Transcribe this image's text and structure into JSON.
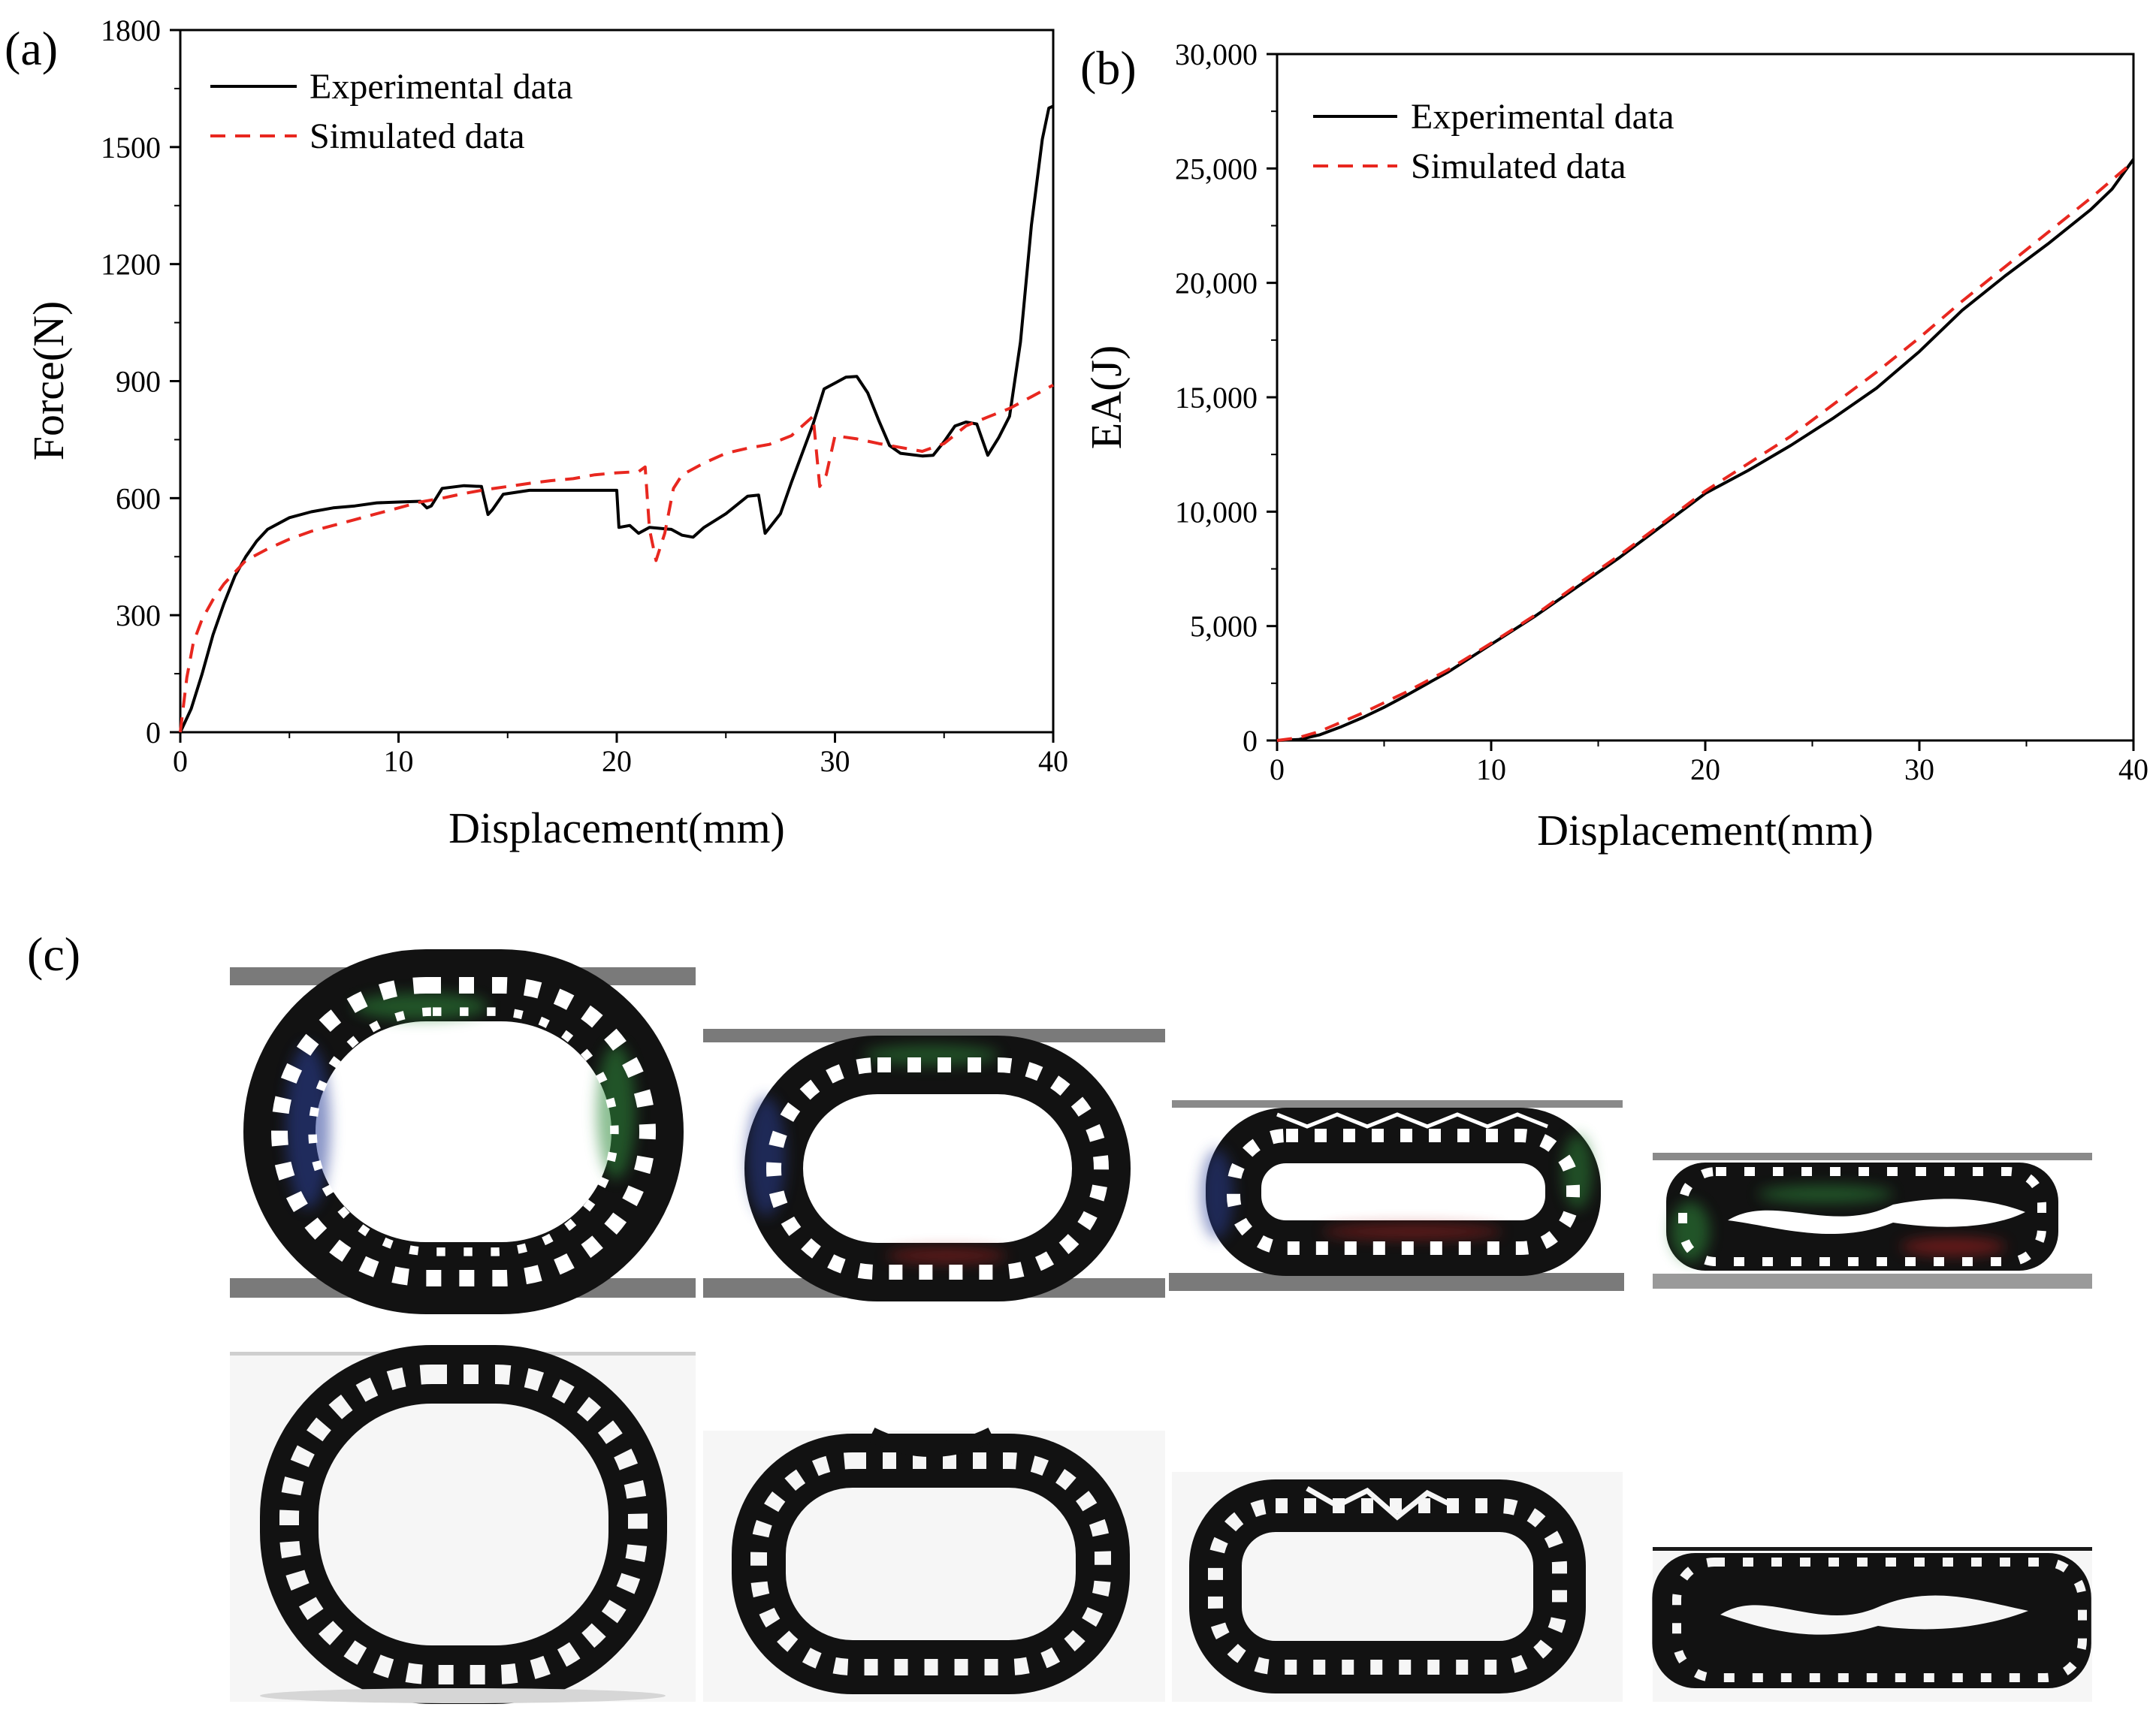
{
  "panel_labels": {
    "a": "(a)",
    "b": "(b)",
    "c": "(c)"
  },
  "colors": {
    "experimental": "#000000",
    "simulated": "#e8271f",
    "platen": "#7a7a7a",
    "specimen": "#121212",
    "stain_green": "#2f8a3a",
    "stain_blue": "#2a3f9a",
    "stain_red": "#b02020"
  },
  "chart_data": [
    {
      "id": "a",
      "type": "line",
      "xlabel": "Displacement(mm)",
      "ylabel": "Force(N)",
      "xlim": [
        0,
        40
      ],
      "ylim": [
        0,
        1800
      ],
      "xticks": [
        0,
        10,
        20,
        30,
        40
      ],
      "yticks": [
        0,
        300,
        600,
        900,
        1200,
        1500,
        1800
      ],
      "ytick_labels": [
        "0",
        "300",
        "600",
        "900",
        "1200",
        "1500",
        "1800"
      ],
      "legend_position": "top-left",
      "series": [
        {
          "name": "Experimental data",
          "style": "solid",
          "points": [
            [
              0,
              0
            ],
            [
              0.5,
              60
            ],
            [
              1,
              150
            ],
            [
              1.5,
              250
            ],
            [
              2,
              330
            ],
            [
              2.5,
              400
            ],
            [
              3,
              450
            ],
            [
              3.5,
              490
            ],
            [
              4,
              520
            ],
            [
              5,
              550
            ],
            [
              6,
              565
            ],
            [
              7,
              575
            ],
            [
              8,
              580
            ],
            [
              9,
              588
            ],
            [
              10,
              590
            ],
            [
              11,
              592
            ],
            [
              11.3,
              575
            ],
            [
              11.5,
              580
            ],
            [
              12,
              625
            ],
            [
              13,
              632
            ],
            [
              13.8,
              630
            ],
            [
              14.1,
              558
            ],
            [
              14.3,
              570
            ],
            [
              14.8,
              610
            ],
            [
              16,
              620
            ],
            [
              18,
              620
            ],
            [
              20,
              620
            ],
            [
              20.1,
              525
            ],
            [
              20.6,
              530
            ],
            [
              21,
              510
            ],
            [
              21.5,
              525
            ],
            [
              22.5,
              520
            ],
            [
              23,
              505
            ],
            [
              23.5,
              500
            ],
            [
              24,
              525
            ],
            [
              25,
              560
            ],
            [
              26,
              605
            ],
            [
              26.5,
              608
            ],
            [
              26.8,
              510
            ],
            [
              27.5,
              560
            ],
            [
              28,
              640
            ],
            [
              29,
              790
            ],
            [
              29.5,
              880
            ],
            [
              30,
              895
            ],
            [
              30.5,
              910
            ],
            [
              31,
              912
            ],
            [
              31.5,
              870
            ],
            [
              32,
              800
            ],
            [
              32.5,
              735
            ],
            [
              33,
              715
            ],
            [
              34,
              708
            ],
            [
              34.5,
              710
            ],
            [
              35,
              745
            ],
            [
              35.5,
              785
            ],
            [
              36,
              795
            ],
            [
              36.5,
              790
            ],
            [
              37,
              710
            ],
            [
              37.5,
              755
            ],
            [
              38,
              810
            ],
            [
              38.5,
              1000
            ],
            [
              39,
              1300
            ],
            [
              39.5,
              1520
            ],
            [
              39.8,
              1600
            ],
            [
              40,
              1605
            ]
          ]
        },
        {
          "name": "Simulated data",
          "style": "dashed",
          "points": [
            [
              0,
              0
            ],
            [
              0.3,
              140
            ],
            [
              0.6,
              230
            ],
            [
              1,
              290
            ],
            [
              1.5,
              340
            ],
            [
              2,
              380
            ],
            [
              2.5,
              410
            ],
            [
              3,
              440
            ],
            [
              4,
              470
            ],
            [
              5,
              495
            ],
            [
              6,
              515
            ],
            [
              7,
              530
            ],
            [
              8,
              545
            ],
            [
              9,
              560
            ],
            [
              10,
              575
            ],
            [
              11,
              590
            ],
            [
              12,
              600
            ],
            [
              13,
              612
            ],
            [
              14,
              622
            ],
            [
              15,
              630
            ],
            [
              16,
              638
            ],
            [
              17,
              645
            ],
            [
              18,
              650
            ],
            [
              19,
              660
            ],
            [
              20,
              665
            ],
            [
              21,
              668
            ],
            [
              21.3,
              680
            ],
            [
              21.5,
              520
            ],
            [
              21.8,
              440
            ],
            [
              22.2,
              510
            ],
            [
              22.6,
              625
            ],
            [
              23,
              660
            ],
            [
              24,
              690
            ],
            [
              25,
              715
            ],
            [
              26,
              728
            ],
            [
              27,
              738
            ],
            [
              28,
              760
            ],
            [
              29,
              810
            ],
            [
              29.3,
              630
            ],
            [
              29.6,
              660
            ],
            [
              30,
              760
            ],
            [
              31,
              752
            ],
            [
              32,
              740
            ],
            [
              33,
              730
            ],
            [
              34,
              720
            ],
            [
              35,
              740
            ],
            [
              36,
              785
            ],
            [
              37,
              808
            ],
            [
              38,
              830
            ],
            [
              39,
              860
            ],
            [
              40,
              890
            ]
          ]
        }
      ]
    },
    {
      "id": "b",
      "type": "line",
      "xlabel": "Displacement(mm)",
      "ylabel": "EA(J)",
      "xlim": [
        0,
        40
      ],
      "ylim": [
        0,
        30000
      ],
      "xticks": [
        0,
        10,
        20,
        30,
        40
      ],
      "yticks": [
        0,
        5000,
        10000,
        15000,
        20000,
        25000,
        30000
      ],
      "ytick_labels": [
        "0",
        "5,000",
        "10,000",
        "15,000",
        "20,000",
        "25,000",
        "30,000"
      ],
      "legend_position": "top-left",
      "series": [
        {
          "name": "Experimental data",
          "style": "solid",
          "points": [
            [
              0,
              0
            ],
            [
              1,
              40
            ],
            [
              2,
              250
            ],
            [
              3,
              600
            ],
            [
              4,
              1000
            ],
            [
              5,
              1450
            ],
            [
              6,
              1950
            ],
            [
              8,
              3000
            ],
            [
              10,
              4200
            ],
            [
              12,
              5400
            ],
            [
              14,
              6700
            ],
            [
              16,
              8000
            ],
            [
              18,
              9400
            ],
            [
              20,
              10800
            ],
            [
              22,
              11800
            ],
            [
              24,
              12900
            ],
            [
              26,
              14100
            ],
            [
              28,
              15400
            ],
            [
              30,
              17000
            ],
            [
              32,
              18800
            ],
            [
              34,
              20300
            ],
            [
              36,
              21700
            ],
            [
              38,
              23200
            ],
            [
              39,
              24100
            ],
            [
              40,
              25400
            ]
          ]
        },
        {
          "name": "Simulated data",
          "style": "dashed",
          "points": [
            [
              0,
              0
            ],
            [
              1,
              120
            ],
            [
              2,
              400
            ],
            [
              3,
              800
            ],
            [
              4,
              1200
            ],
            [
              5,
              1650
            ],
            [
              6,
              2100
            ],
            [
              8,
              3100
            ],
            [
              10,
              4250
            ],
            [
              12,
              5450
            ],
            [
              14,
              6800
            ],
            [
              16,
              8100
            ],
            [
              18,
              9500
            ],
            [
              20,
              10900
            ],
            [
              22,
              12100
            ],
            [
              24,
              13300
            ],
            [
              26,
              14700
            ],
            [
              28,
              16100
            ],
            [
              30,
              17600
            ],
            [
              32,
              19200
            ],
            [
              34,
              20700
            ],
            [
              36,
              22200
            ],
            [
              38,
              23700
            ],
            [
              40,
              25300
            ]
          ]
        }
      ]
    }
  ]
}
